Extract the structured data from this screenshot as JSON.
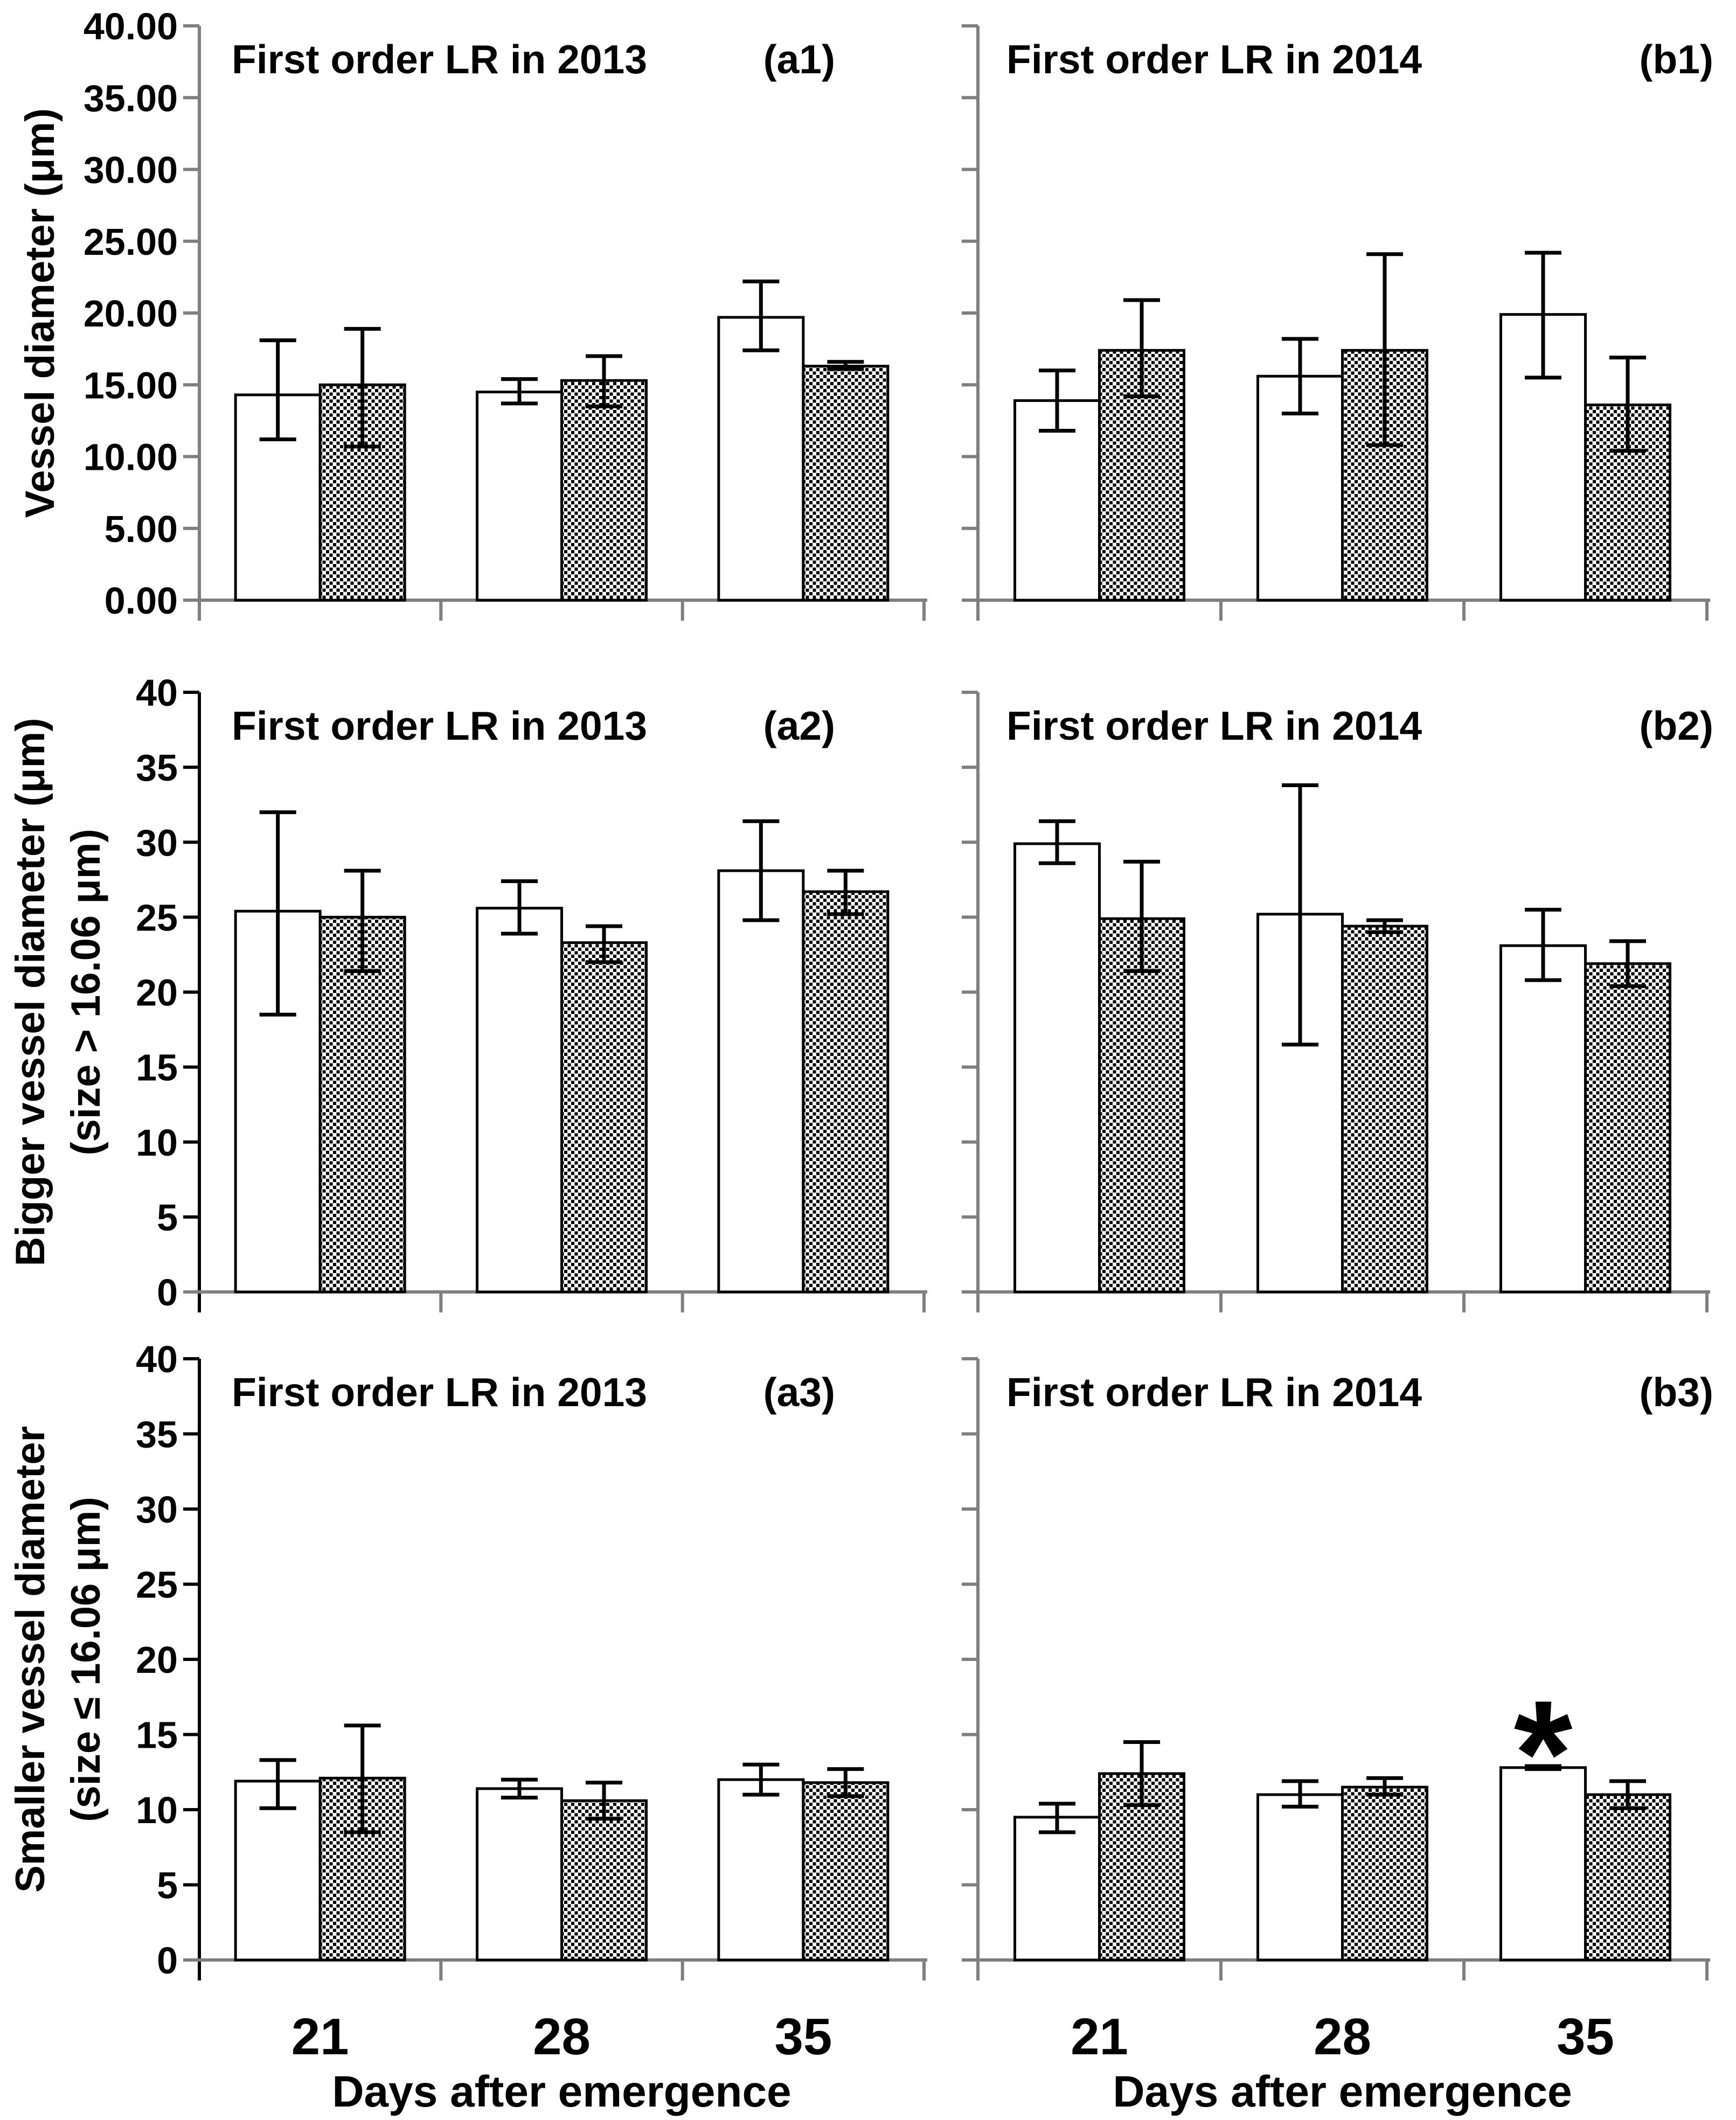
{
  "figure": {
    "background": "#ffffff",
    "x_axis_title": "Days after emergence",
    "categories": [
      "21",
      "28",
      "35"
    ],
    "colors": {
      "axis_gray": "#7f7f7f",
      "axis_black": "#000000",
      "bar_outline": "#000000",
      "open_bar_fill": "#ffffff",
      "hatched_bar_pattern": "black-white-checkerboard"
    }
  },
  "chart_data": [
    {
      "id": "a1",
      "type": "bar",
      "title": "First order LR in 2013",
      "panel": "(a1)",
      "ylabel_lines": [
        "Vessel diameter (μm)"
      ],
      "ylim": [
        0,
        40
      ],
      "ytick_labels": [
        "0.00",
        "5.00",
        "10.00",
        "15.00",
        "20.00",
        "25.00",
        "30.00",
        "35.00",
        "40.00"
      ],
      "y_axis_color": "#7f7f7f",
      "show_y_tick_labels": true,
      "show_x_tick_labels": false,
      "xlabel": "",
      "categories": [
        "21",
        "28",
        "35"
      ],
      "series": [
        {
          "name": "open",
          "fill": "white",
          "values": [
            14.3,
            14.5,
            19.7
          ],
          "err_low": [
            11.2,
            13.7,
            17.4
          ],
          "err_high": [
            18.1,
            15.4,
            22.2
          ]
        },
        {
          "name": "hatched",
          "fill": "checker",
          "values": [
            15.0,
            15.3,
            16.3
          ],
          "err_low": [
            10.7,
            13.5,
            16.1
          ],
          "err_high": [
            18.9,
            17.0,
            16.6
          ]
        }
      ],
      "annotations": []
    },
    {
      "id": "b1",
      "type": "bar",
      "title": "First order LR in 2014",
      "panel": "(b1)",
      "ylabel_lines": [],
      "ylim": [
        0,
        40
      ],
      "ytick_labels": [
        "0.00",
        "5.00",
        "10.00",
        "15.00",
        "20.00",
        "25.00",
        "30.00",
        "35.00",
        "40.00"
      ],
      "y_axis_color": "#7f7f7f",
      "show_y_tick_labels": false,
      "show_x_tick_labels": false,
      "xlabel": "",
      "categories": [
        "21",
        "28",
        "35"
      ],
      "series": [
        {
          "name": "open",
          "fill": "white",
          "values": [
            13.9,
            15.6,
            19.9
          ],
          "err_low": [
            11.8,
            13.0,
            15.5
          ],
          "err_high": [
            16.0,
            18.2,
            24.2
          ]
        },
        {
          "name": "hatched",
          "fill": "checker",
          "values": [
            17.4,
            17.4,
            13.6
          ],
          "err_low": [
            14.2,
            10.8,
            10.4
          ],
          "err_high": [
            20.9,
            24.1,
            16.9
          ]
        }
      ],
      "annotations": []
    },
    {
      "id": "a2",
      "type": "bar",
      "title": "First order LR in 2013",
      "panel": "(a2)",
      "ylabel_lines": [
        "Bigger vessel diameter (μm)",
        "(size > 16.06 μm)"
      ],
      "ylim": [
        0,
        40
      ],
      "ytick_labels": [
        "0",
        "5",
        "10",
        "15",
        "20",
        "25",
        "30",
        "35",
        "40"
      ],
      "y_axis_color": "#000000",
      "show_y_tick_labels": true,
      "show_x_tick_labels": false,
      "xlabel": "",
      "categories": [
        "21",
        "28",
        "35"
      ],
      "series": [
        {
          "name": "open",
          "fill": "white",
          "values": [
            25.4,
            25.6,
            28.1
          ],
          "err_low": [
            18.5,
            23.9,
            24.8
          ],
          "err_high": [
            32.0,
            27.4,
            31.4
          ]
        },
        {
          "name": "hatched",
          "fill": "checker",
          "values": [
            25.0,
            23.3,
            26.7
          ],
          "err_low": [
            21.4,
            22.0,
            25.2
          ],
          "err_high": [
            28.1,
            24.4,
            28.1
          ]
        }
      ],
      "annotations": []
    },
    {
      "id": "b2",
      "type": "bar",
      "title": "First order LR in 2014",
      "panel": "(b2)",
      "ylabel_lines": [],
      "ylim": [
        0,
        40
      ],
      "ytick_labels": [
        "0",
        "5",
        "10",
        "15",
        "20",
        "25",
        "30",
        "35",
        "40"
      ],
      "y_axis_color": "#7f7f7f",
      "show_y_tick_labels": false,
      "show_x_tick_labels": false,
      "xlabel": "",
      "categories": [
        "21",
        "28",
        "35"
      ],
      "series": [
        {
          "name": "open",
          "fill": "white",
          "values": [
            29.9,
            25.2,
            23.1
          ],
          "err_low": [
            28.6,
            16.5,
            20.8
          ],
          "err_high": [
            31.4,
            33.8,
            25.5
          ]
        },
        {
          "name": "hatched",
          "fill": "checker",
          "values": [
            24.9,
            24.4,
            21.9
          ],
          "err_low": [
            21.4,
            24.0,
            20.4
          ],
          "err_high": [
            28.7,
            24.8,
            23.4
          ]
        }
      ],
      "annotations": []
    },
    {
      "id": "a3",
      "type": "bar",
      "title": "First order LR in 2013",
      "panel": "(a3)",
      "ylabel_lines": [
        "Smaller vessel diameter",
        "(size ≤ 16.06 μm)"
      ],
      "ylim": [
        0,
        40
      ],
      "ytick_labels": [
        "0",
        "5",
        "10",
        "15",
        "20",
        "25",
        "30",
        "35",
        "40"
      ],
      "y_axis_color": "#000000",
      "show_y_tick_labels": true,
      "show_x_tick_labels": true,
      "xlabel": "Days after emergence",
      "categories": [
        "21",
        "28",
        "35"
      ],
      "series": [
        {
          "name": "open",
          "fill": "white",
          "values": [
            11.9,
            11.4,
            12.0
          ],
          "err_low": [
            10.1,
            10.8,
            11.0
          ],
          "err_high": [
            13.3,
            12.0,
            13.0
          ]
        },
        {
          "name": "hatched",
          "fill": "checker",
          "values": [
            12.1,
            10.6,
            11.8
          ],
          "err_low": [
            8.5,
            9.4,
            10.9
          ],
          "err_high": [
            15.6,
            11.8,
            12.7
          ]
        }
      ],
      "annotations": []
    },
    {
      "id": "b3",
      "type": "bar",
      "title": "First order LR in 2014",
      "panel": "(b3)",
      "ylabel_lines": [],
      "ylim": [
        0,
        40
      ],
      "ytick_labels": [
        "0",
        "5",
        "10",
        "15",
        "20",
        "25",
        "30",
        "35",
        "40"
      ],
      "y_axis_color": "#7f7f7f",
      "show_y_tick_labels": false,
      "show_x_tick_labels": true,
      "xlabel": "Days after emergence",
      "categories": [
        "21",
        "28",
        "35"
      ],
      "series": [
        {
          "name": "open",
          "fill": "white",
          "values": [
            9.5,
            11.0,
            12.8
          ],
          "err_low": [
            8.5,
            10.2,
            12.7
          ],
          "err_high": [
            10.4,
            11.9,
            12.9
          ]
        },
        {
          "name": "hatched",
          "fill": "checker",
          "values": [
            12.4,
            11.5,
            11.0
          ],
          "err_low": [
            10.3,
            11.0,
            10.1
          ],
          "err_high": [
            14.5,
            12.1,
            11.9
          ]
        }
      ],
      "annotations": [
        {
          "text": "*",
          "series_index": 0,
          "category_index": 2,
          "meaning": "significance-asterisk"
        }
      ]
    }
  ]
}
